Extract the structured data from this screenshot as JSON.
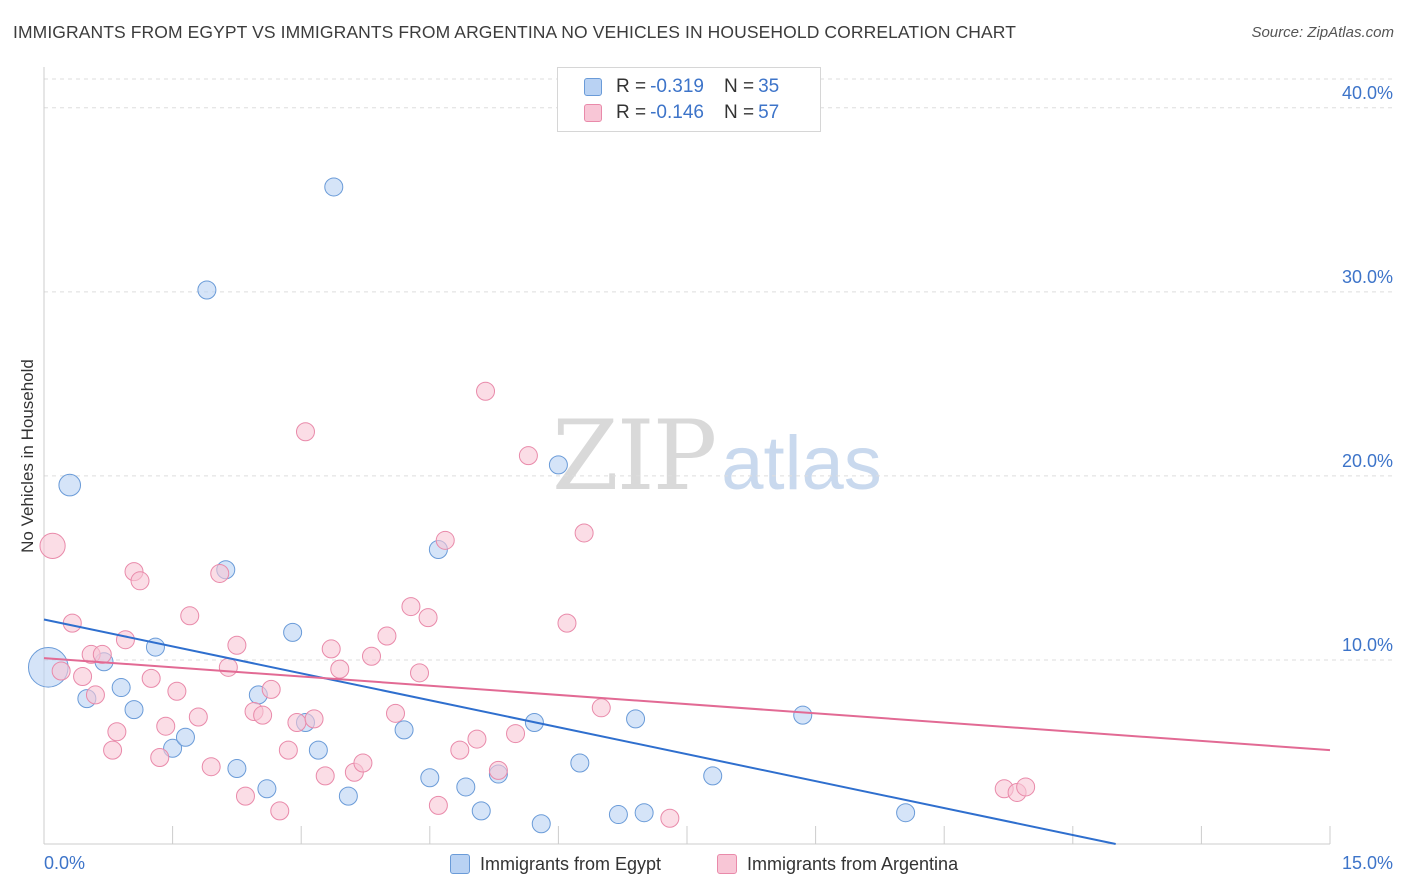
{
  "title": "IMMIGRANTS FROM EGYPT VS IMMIGRANTS FROM ARGENTINA NO VEHICLES IN HOUSEHOLD CORRELATION CHART",
  "source": "Source: ZipAtlas.com",
  "watermark": {
    "zip": "ZIP",
    "atlas": "atlas"
  },
  "colors": {
    "egypt_fill": "#b9d2f3",
    "egypt_stroke": "#6a9bd8",
    "egypt_line": "#2f6fce",
    "argentina_fill": "#f8c6d6",
    "argentina_stroke": "#e98aaa",
    "argentina_line": "#e26a94",
    "tick_text": "#3d74c9",
    "grid": "#dddddd"
  },
  "legend": {
    "egypt": {
      "r_label": "R =",
      "r_value": "-0.319",
      "n_label": "N =",
      "n_value": "35"
    },
    "argentina": {
      "r_label": "R =",
      "r_value": "-0.146",
      "n_label": "N =",
      "n_value": "57"
    }
  },
  "chart_data": {
    "type": "scatter",
    "title": "IMMIGRANTS FROM EGYPT VS IMMIGRANTS FROM ARGENTINA NO VEHICLES IN HOUSEHOLD CORRELATION CHART",
    "xlabel": "",
    "ylabel": "No Vehicles in Household",
    "xlim": [
      0,
      15
    ],
    "ylim": [
      0,
      42
    ],
    "x_tick_labels": [
      {
        "value": 0,
        "label": "0.0%"
      },
      {
        "value": 15,
        "label": "15.0%"
      }
    ],
    "x_minor_ticks": [
      1.5,
      3.0,
      4.5,
      6.0,
      7.5,
      9.0,
      10.5,
      12.0,
      13.5
    ],
    "y_ticks": [
      {
        "value": 10,
        "label": "10.0%"
      },
      {
        "value": 20,
        "label": "20.0%"
      },
      {
        "value": 30,
        "label": "30.0%"
      },
      {
        "value": 40,
        "label": "40.0%"
      }
    ],
    "legend_position": "top-center",
    "series": [
      {
        "name": "Immigrants from Egypt",
        "r": -0.319,
        "n": 35,
        "trend": {
          "x": [
            0,
            12.5
          ],
          "y": [
            12.2,
            0
          ]
        },
        "points": [
          [
            0.05,
            9.6,
            2.2
          ],
          [
            0.3,
            19.5,
            1.2
          ],
          [
            0.5,
            7.9,
            1
          ],
          [
            0.7,
            9.9,
            1
          ],
          [
            0.9,
            8.5,
            1
          ],
          [
            1.05,
            7.3,
            1
          ],
          [
            1.3,
            10.7,
            1
          ],
          [
            1.5,
            5.2,
            1
          ],
          [
            1.65,
            5.8,
            1
          ],
          [
            1.9,
            30.1,
            1
          ],
          [
            2.12,
            14.9,
            1
          ],
          [
            2.25,
            4.1,
            1
          ],
          [
            2.5,
            8.1,
            1
          ],
          [
            2.6,
            3.0,
            1
          ],
          [
            2.9,
            11.5,
            1
          ],
          [
            3.05,
            6.6,
            1
          ],
          [
            3.2,
            5.1,
            1
          ],
          [
            3.38,
            35.7,
            1
          ],
          [
            3.55,
            2.6,
            1
          ],
          [
            4.2,
            6.2,
            1
          ],
          [
            4.5,
            3.6,
            1
          ],
          [
            4.6,
            16.0,
            1
          ],
          [
            4.92,
            3.1,
            1
          ],
          [
            5.1,
            1.8,
            1
          ],
          [
            5.3,
            3.8,
            1
          ],
          [
            5.72,
            6.6,
            1
          ],
          [
            5.8,
            1.1,
            1
          ],
          [
            6.0,
            20.6,
            1
          ],
          [
            6.25,
            4.4,
            1
          ],
          [
            6.7,
            1.6,
            1
          ],
          [
            6.9,
            6.8,
            1
          ],
          [
            7.0,
            1.7,
            1
          ],
          [
            7.8,
            3.7,
            1
          ],
          [
            8.85,
            7.0,
            1
          ],
          [
            10.05,
            1.7,
            1
          ]
        ]
      },
      {
        "name": "Immigrants from Argentina",
        "r": -0.146,
        "n": 57,
        "trend": {
          "x": [
            0,
            15
          ],
          "y": [
            10.1,
            5.1
          ]
        },
        "points": [
          [
            0.1,
            16.2,
            1.4
          ],
          [
            0.2,
            9.4,
            1
          ],
          [
            0.33,
            12.0,
            1
          ],
          [
            0.45,
            9.1,
            1
          ],
          [
            0.55,
            10.3,
            1
          ],
          [
            0.6,
            8.1,
            1
          ],
          [
            0.68,
            10.3,
            1
          ],
          [
            0.8,
            5.1,
            1
          ],
          [
            0.85,
            6.1,
            1
          ],
          [
            0.95,
            11.1,
            1
          ],
          [
            1.05,
            14.8,
            1
          ],
          [
            1.12,
            14.3,
            1
          ],
          [
            1.25,
            9.0,
            1
          ],
          [
            1.35,
            4.7,
            1
          ],
          [
            1.42,
            6.4,
            1
          ],
          [
            1.55,
            8.3,
            1
          ],
          [
            1.7,
            12.4,
            1
          ],
          [
            1.8,
            6.9,
            1
          ],
          [
            1.95,
            4.2,
            1
          ],
          [
            2.05,
            14.7,
            1
          ],
          [
            2.15,
            9.6,
            1
          ],
          [
            2.25,
            10.8,
            1
          ],
          [
            2.35,
            2.6,
            1
          ],
          [
            2.45,
            7.2,
            1
          ],
          [
            2.55,
            7.0,
            1
          ],
          [
            2.65,
            8.4,
            1
          ],
          [
            2.75,
            1.8,
            1
          ],
          [
            2.85,
            5.1,
            1
          ],
          [
            2.95,
            6.6,
            1
          ],
          [
            3.05,
            22.4,
            1
          ],
          [
            3.15,
            6.8,
            1
          ],
          [
            3.28,
            3.7,
            1
          ],
          [
            3.35,
            10.6,
            1
          ],
          [
            3.45,
            9.5,
            1
          ],
          [
            3.62,
            3.9,
            1
          ],
          [
            3.72,
            4.4,
            1
          ],
          [
            3.82,
            10.2,
            1
          ],
          [
            4.0,
            11.3,
            1
          ],
          [
            4.1,
            7.1,
            1
          ],
          [
            4.28,
            12.9,
            1
          ],
          [
            4.38,
            9.3,
            1
          ],
          [
            4.48,
            12.3,
            1
          ],
          [
            4.6,
            2.1,
            1
          ],
          [
            4.68,
            16.5,
            1
          ],
          [
            4.85,
            5.1,
            1
          ],
          [
            5.05,
            5.7,
            1
          ],
          [
            5.15,
            24.6,
            1
          ],
          [
            5.3,
            4.0,
            1
          ],
          [
            5.5,
            6.0,
            1
          ],
          [
            5.65,
            21.1,
            1
          ],
          [
            6.1,
            12.0,
            1
          ],
          [
            6.3,
            16.9,
            1
          ],
          [
            6.5,
            7.4,
            1
          ],
          [
            7.3,
            1.4,
            1
          ],
          [
            11.2,
            3.0,
            1
          ],
          [
            11.35,
            2.8,
            1
          ],
          [
            11.45,
            3.1,
            1
          ]
        ]
      }
    ]
  },
  "bottom_legend": {
    "egypt_label": "Immigrants from Egypt",
    "argentina_label": "Immigrants from Argentina"
  }
}
